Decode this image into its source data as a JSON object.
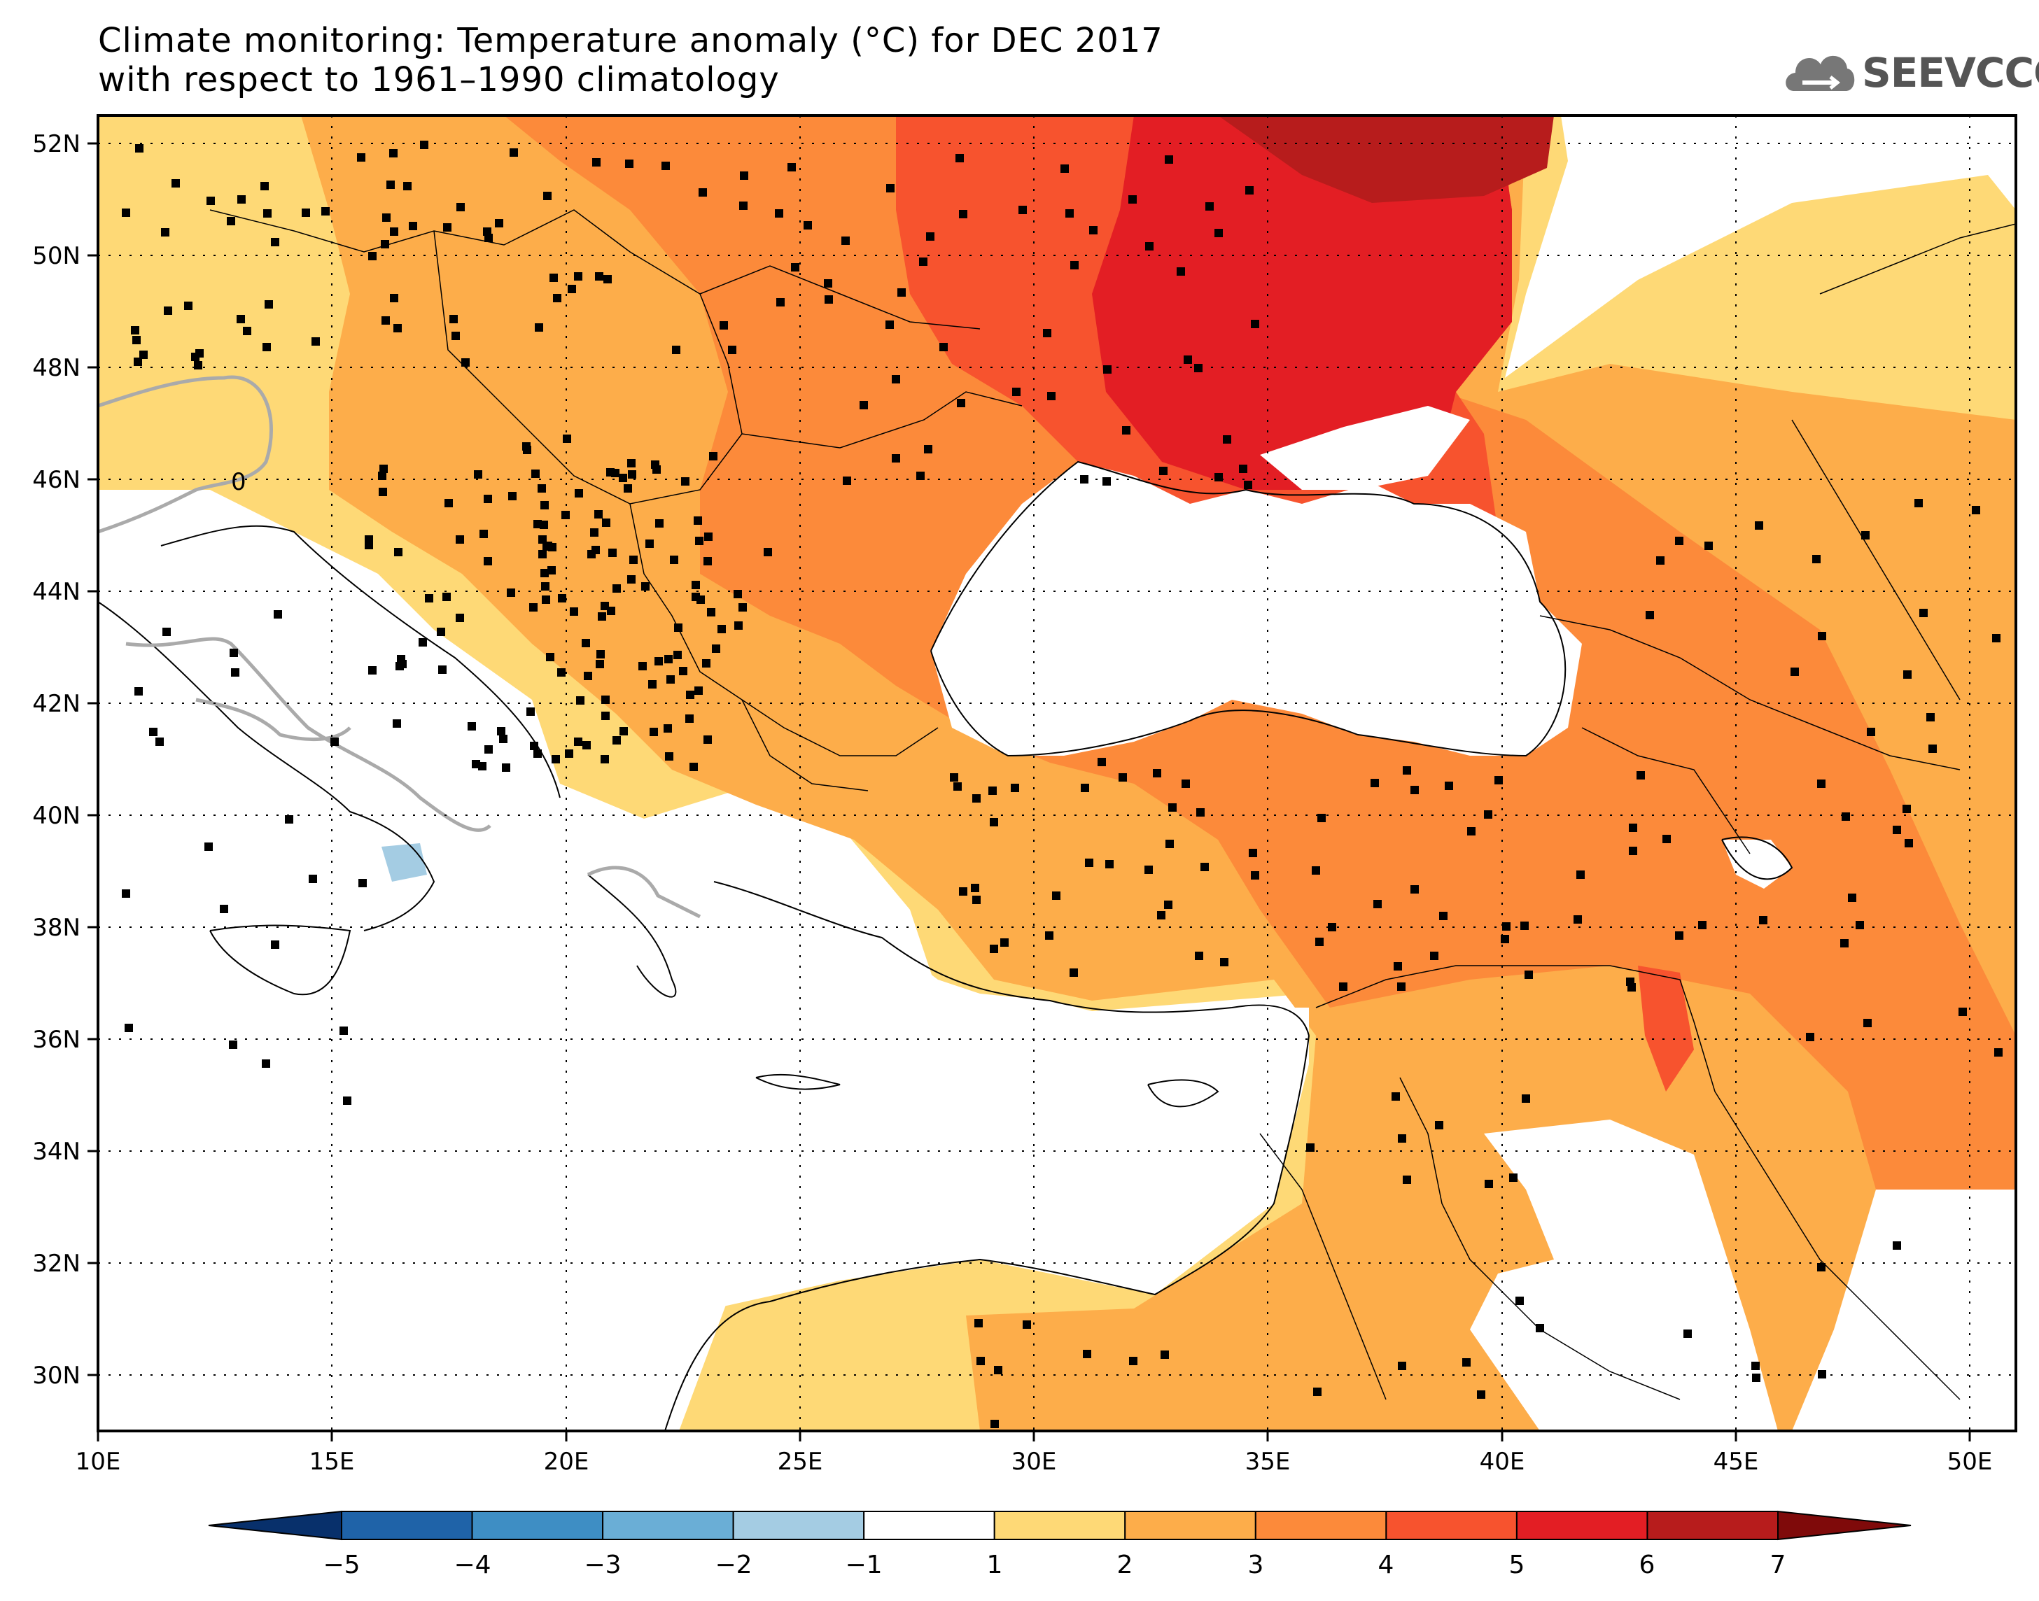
{
  "title": {
    "line1": "Climate monitoring: Temperature anomaly (°C) for DEC 2017",
    "line2": "with respect to 1961–1990 climatology"
  },
  "logo": {
    "text": "SEEVCCC",
    "icon": "cloud-icon"
  },
  "map": {
    "lon_range": [
      10,
      51
    ],
    "lat_range": [
      29,
      52.5
    ],
    "lon_ticks": [
      "10E",
      "15E",
      "20E",
      "25E",
      "30E",
      "35E",
      "40E",
      "45E",
      "50E"
    ],
    "lat_ticks": [
      "30N",
      "32N",
      "34N",
      "36N",
      "38N",
      "40N",
      "42N",
      "44N",
      "46N",
      "48N",
      "50N",
      "52N"
    ],
    "grid": "dotted",
    "contour_label": "0"
  },
  "colorbar": {
    "labels": [
      "−5",
      "−4",
      "−3",
      "−2",
      "−1",
      "1",
      "2",
      "3",
      "4",
      "5",
      "6",
      "7"
    ],
    "colors": [
      "#08306b",
      "#1f63a8",
      "#3e8ec4",
      "#6aaed6",
      "#a4cce3",
      "#ffffff",
      "#fed976",
      "#fdad4a",
      "#fc8a3a",
      "#f7532e",
      "#e31e24",
      "#b71c1c",
      "#7f0a0a"
    ]
  }
}
